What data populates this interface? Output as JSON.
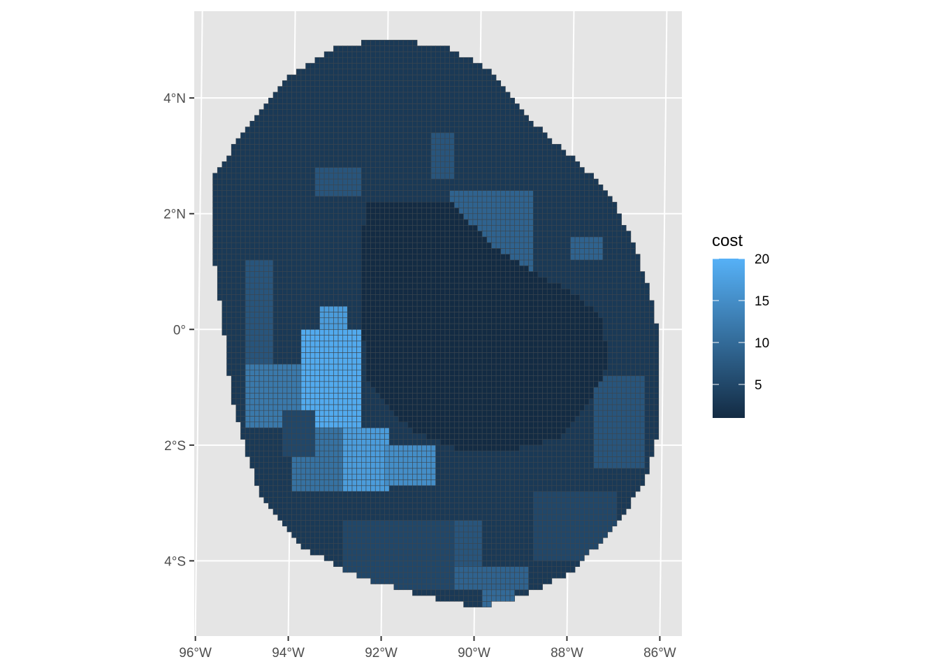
{
  "chart_data": {
    "type": "heatmap",
    "title": "",
    "xlabel": "",
    "ylabel": "",
    "x_ticks": [
      {
        "value": -96,
        "label": "96°W"
      },
      {
        "value": -94,
        "label": "94°W"
      },
      {
        "value": -92,
        "label": "92°W"
      },
      {
        "value": -90,
        "label": "90°W"
      },
      {
        "value": -88,
        "label": "88°W"
      },
      {
        "value": -86,
        "label": "86°W"
      }
    ],
    "y_ticks": [
      {
        "value": 4,
        "label": "4°N"
      },
      {
        "value": 2,
        "label": "2°N"
      },
      {
        "value": 0,
        "label": "0°"
      },
      {
        "value": -2,
        "label": "2°S"
      },
      {
        "value": -4,
        "label": "4°S"
      }
    ],
    "xlim": [
      -96.1,
      -85.6
    ],
    "ylim": [
      -5.3,
      5.5
    ],
    "grid": true,
    "legend": {
      "title": "cost",
      "position": "right",
      "ticks": [
        5,
        10,
        15,
        20
      ],
      "range": [
        1,
        20
      ],
      "color_low": "#132b43",
      "color_high": "#56b1f7"
    },
    "region": {
      "outline_lon_lat": [
        [
          -92.0,
          5.0
        ],
        [
          -90.7,
          4.9
        ],
        [
          -89.8,
          4.5
        ],
        [
          -89.0,
          3.7
        ],
        [
          -88.0,
          3.0
        ],
        [
          -87.2,
          2.4
        ],
        [
          -86.7,
          1.6
        ],
        [
          -86.3,
          0.7
        ],
        [
          -86.1,
          -0.1
        ],
        [
          -86.1,
          -1.7
        ],
        [
          -86.4,
          -2.6
        ],
        [
          -87.0,
          -3.4
        ],
        [
          -88.0,
          -4.2
        ],
        [
          -89.0,
          -4.6
        ],
        [
          -90.0,
          -4.8
        ],
        [
          -91.2,
          -4.6
        ],
        [
          -92.5,
          -4.3
        ],
        [
          -93.7,
          -3.8
        ],
        [
          -94.6,
          -3.0
        ],
        [
          -95.0,
          -2.1
        ],
        [
          -95.3,
          -1.2
        ],
        [
          -95.5,
          0.2
        ],
        [
          -95.7,
          1.4
        ],
        [
          -95.7,
          2.6
        ],
        [
          -95.0,
          3.5
        ],
        [
          -94.0,
          4.4
        ],
        [
          -93.0,
          4.9
        ]
      ],
      "cell_size_deg": 0.1,
      "base_cost": 3,
      "cost_zones": [
        {
          "lon": [
            -93.8,
            -92.5
          ],
          "lat": [
            -1.7,
            0.0
          ],
          "cost": 19
        },
        {
          "lon": [
            -93.4,
            -92.8
          ],
          "lat": [
            0.0,
            0.4
          ],
          "cost": 17
        },
        {
          "lon": [
            -92.9,
            -91.9
          ],
          "lat": [
            -2.8,
            -1.7
          ],
          "cost": 17
        },
        {
          "lon": [
            -92.0,
            -90.9
          ],
          "lat": [
            -2.7,
            -2.0
          ],
          "cost": 15
        },
        {
          "lon": [
            -95.0,
            -93.8
          ],
          "lat": [
            -1.7,
            -0.6
          ],
          "cost": 12
        },
        {
          "lon": [
            -94.0,
            -92.9
          ],
          "lat": [
            -2.8,
            -1.7
          ],
          "cost": 11
        },
        {
          "lon": [
            -90.6,
            -88.8
          ],
          "lat": [
            1.0,
            2.4
          ],
          "cost": 9
        },
        {
          "lon": [
            -89.4,
            -88.9
          ],
          "lat": [
            0.8,
            1.0
          ],
          "cost": 9
        },
        {
          "lon": [
            -88.0,
            -87.3
          ],
          "lat": [
            1.2,
            1.6
          ],
          "cost": 9
        },
        {
          "lon": [
            -89.6,
            -89.0
          ],
          "lat": [
            -0.3,
            0.0
          ],
          "cost": 9
        },
        {
          "lon": [
            -91.3,
            -88.9
          ],
          "lat": [
            -4.5,
            -4.1
          ],
          "cost": 9
        },
        {
          "lon": [
            -89.9,
            -89.2
          ],
          "lat": [
            -4.8,
            -4.5
          ],
          "cost": 10
        },
        {
          "lon": [
            -91.5,
            -89.9
          ],
          "lat": [
            -4.1,
            -3.3
          ],
          "cost": 7
        },
        {
          "lon": [
            -95.0,
            -94.4
          ],
          "lat": [
            -0.6,
            1.2
          ],
          "cost": 7
        },
        {
          "lon": [
            -93.5,
            -92.5
          ],
          "lat": [
            2.3,
            2.8
          ],
          "cost": 7
        },
        {
          "lon": [
            -91.0,
            -90.5
          ],
          "lat": [
            2.6,
            3.4
          ],
          "cost": 7
        },
        {
          "lon": [
            -87.5,
            -86.4
          ],
          "lat": [
            -2.4,
            -0.8
          ],
          "cost": 7
        },
        {
          "lon": [
            -92.9,
            -90.5
          ],
          "lat": [
            -4.5,
            -3.3
          ],
          "cost": 5
        },
        {
          "lon": [
            -88.8,
            -87.0
          ],
          "lat": [
            -4.0,
            -2.8
          ],
          "cost": 5
        },
        {
          "lon": [
            -94.2,
            -93.5
          ],
          "lat": [
            -2.2,
            -1.4
          ],
          "cost": 5
        }
      ],
      "low_core": {
        "outline_lon_lat": [
          [
            -92.4,
            2.2
          ],
          [
            -90.6,
            2.2
          ],
          [
            -89.6,
            1.4
          ],
          [
            -88.8,
            1.0
          ],
          [
            -87.9,
            0.6
          ],
          [
            -87.3,
            0.2
          ],
          [
            -87.2,
            -0.6
          ],
          [
            -87.6,
            -1.3
          ],
          [
            -88.3,
            -1.9
          ],
          [
            -89.4,
            -2.1
          ],
          [
            -90.4,
            -2.1
          ],
          [
            -91.3,
            -1.8
          ],
          [
            -91.9,
            -1.4
          ],
          [
            -92.4,
            -0.8
          ],
          [
            -92.5,
            0.3
          ],
          [
            -92.5,
            1.5
          ]
        ],
        "cost": 1
      }
    }
  }
}
